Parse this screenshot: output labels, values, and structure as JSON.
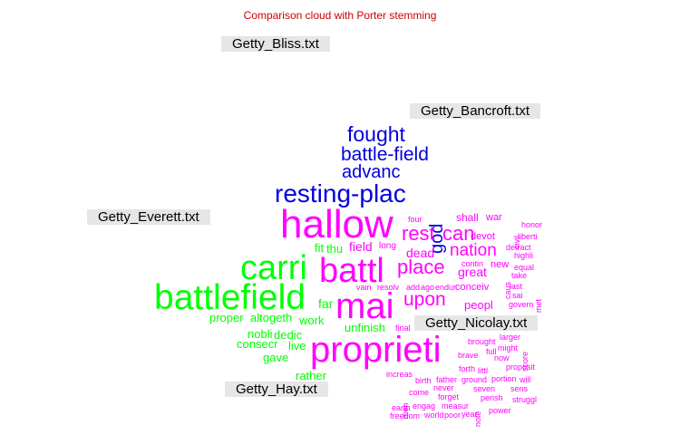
{
  "title": "Comparison cloud with Porter stemming",
  "colors": {
    "title": "#cc0000",
    "bancroft": "#0000dd",
    "nicolay": "#ff00ff",
    "everett": "#00ff00"
  },
  "labels": {
    "bliss": "Getty_Bliss.txt",
    "bancroft": "Getty_Bancroft.txt",
    "everett": "Getty_Everett.txt",
    "nicolay": "Getty_Nicolay.txt",
    "hay": "Getty_Hay.txt"
  },
  "words": [
    {
      "text": "fought",
      "color": "#0000dd"
    },
    {
      "text": "battle-field",
      "color": "#0000dd"
    },
    {
      "text": "advanc",
      "color": "#0000dd"
    },
    {
      "text": "resting-plac",
      "color": "#0000dd"
    },
    {
      "text": "god",
      "color": "#0000dd",
      "vertical": true
    },
    {
      "text": "hallow",
      "color": "#ff00ff"
    },
    {
      "text": "carri",
      "color": "#00ff00"
    },
    {
      "text": "battl",
      "color": "#ff00ff"
    },
    {
      "text": "battlefield",
      "color": "#00ff00"
    },
    {
      "text": "mai",
      "color": "#ff00ff"
    },
    {
      "text": "proprieti",
      "color": "#ff00ff"
    },
    {
      "text": "rest",
      "color": "#ff00ff"
    },
    {
      "text": "can",
      "color": "#ff00ff"
    },
    {
      "text": "place",
      "color": "#ff00ff"
    },
    {
      "text": "upon",
      "color": "#ff00ff"
    },
    {
      "text": "nation",
      "color": "#ff00ff"
    },
    {
      "text": "dead",
      "color": "#ff00ff"
    },
    {
      "text": "great",
      "color": "#ff00ff"
    },
    {
      "text": "peopl",
      "color": "#ff00ff"
    },
    {
      "text": "shall",
      "color": "#ff00ff"
    },
    {
      "text": "war",
      "color": "#ff00ff"
    },
    {
      "text": "four",
      "color": "#ff00ff"
    },
    {
      "text": "devot",
      "color": "#ff00ff"
    },
    {
      "text": "long",
      "color": "#ff00ff"
    },
    {
      "text": "new",
      "color": "#ff00ff"
    },
    {
      "text": "conceiv",
      "color": "#ff00ff"
    },
    {
      "text": "contin",
      "color": "#ff00ff"
    },
    {
      "text": "endur",
      "color": "#ff00ff"
    },
    {
      "text": "ago",
      "color": "#ff00ff"
    },
    {
      "text": "add",
      "color": "#ff00ff"
    },
    {
      "text": "resolv",
      "color": "#ff00ff"
    },
    {
      "text": "vain",
      "color": "#ff00ff"
    },
    {
      "text": "final",
      "color": "#ff00ff"
    },
    {
      "text": "equal",
      "color": "#ff00ff"
    },
    {
      "text": "take",
      "color": "#ff00ff"
    },
    {
      "text": "last",
      "color": "#ff00ff"
    },
    {
      "text": "sai",
      "color": "#ff00ff"
    },
    {
      "text": "govern",
      "color": "#ff00ff"
    },
    {
      "text": "detract",
      "color": "#ff00ff"
    },
    {
      "text": "highli",
      "color": "#ff00ff"
    },
    {
      "text": "liberti",
      "color": "#ff00ff"
    },
    {
      "text": "honor",
      "color": "#ff00ff"
    },
    {
      "text": "civil",
      "color": "#ff00ff",
      "vertical": true
    },
    {
      "text": "caus",
      "color": "#ff00ff",
      "vertical": true
    },
    {
      "text": "met",
      "color": "#ff00ff",
      "vertical": true
    },
    {
      "text": "larger",
      "color": "#ff00ff"
    },
    {
      "text": "brought",
      "color": "#ff00ff"
    },
    {
      "text": "might",
      "color": "#ff00ff"
    },
    {
      "text": "full",
      "color": "#ff00ff"
    },
    {
      "text": "brave",
      "color": "#ff00ff"
    },
    {
      "text": "now",
      "color": "#ff00ff"
    },
    {
      "text": "littl",
      "color": "#ff00ff"
    },
    {
      "text": "forth",
      "color": "#ff00ff"
    },
    {
      "text": "portion",
      "color": "#ff00ff"
    },
    {
      "text": "score",
      "color": "#ff00ff",
      "vertical": true
    },
    {
      "text": "proposit",
      "color": "#ff00ff"
    },
    {
      "text": "increas",
      "color": "#ff00ff"
    },
    {
      "text": "birth",
      "color": "#ff00ff"
    },
    {
      "text": "father",
      "color": "#ff00ff"
    },
    {
      "text": "ground",
      "color": "#ff00ff"
    },
    {
      "text": "will",
      "color": "#ff00ff"
    },
    {
      "text": "never",
      "color": "#ff00ff"
    },
    {
      "text": "seven",
      "color": "#ff00ff"
    },
    {
      "text": "sens",
      "color": "#ff00ff"
    },
    {
      "text": "come",
      "color": "#ff00ff"
    },
    {
      "text": "forget",
      "color": "#ff00ff"
    },
    {
      "text": "perish",
      "color": "#ff00ff"
    },
    {
      "text": "struggl",
      "color": "#ff00ff"
    },
    {
      "text": "men",
      "color": "#ff00ff",
      "vertical": true
    },
    {
      "text": "note",
      "color": "#ff00ff",
      "vertical": true
    },
    {
      "text": "engag",
      "color": "#ff00ff"
    },
    {
      "text": "measur",
      "color": "#ff00ff"
    },
    {
      "text": "earth",
      "color": "#ff00ff"
    },
    {
      "text": "power",
      "color": "#ff00ff"
    },
    {
      "text": "freedom",
      "color": "#ff00ff"
    },
    {
      "text": "world",
      "color": "#ff00ff"
    },
    {
      "text": "poor",
      "color": "#ff00ff"
    },
    {
      "text": "year",
      "color": "#ff00ff"
    },
    {
      "text": "field",
      "color": "#ff00ff"
    },
    {
      "text": "fit",
      "color": "#00ff00"
    },
    {
      "text": "thu",
      "color": "#00ff00"
    },
    {
      "text": "far",
      "color": "#00ff00"
    },
    {
      "text": "proper",
      "color": "#00ff00"
    },
    {
      "text": "altogeth",
      "color": "#00ff00"
    },
    {
      "text": "work",
      "color": "#00ff00"
    },
    {
      "text": "unfinish",
      "color": "#00ff00"
    },
    {
      "text": "nobli",
      "color": "#00ff00"
    },
    {
      "text": "dedic",
      "color": "#00ff00"
    },
    {
      "text": "consecr",
      "color": "#00ff00"
    },
    {
      "text": "live",
      "color": "#00ff00"
    },
    {
      "text": "gave",
      "color": "#00ff00"
    },
    {
      "text": "rather",
      "color": "#00ff00"
    }
  ]
}
